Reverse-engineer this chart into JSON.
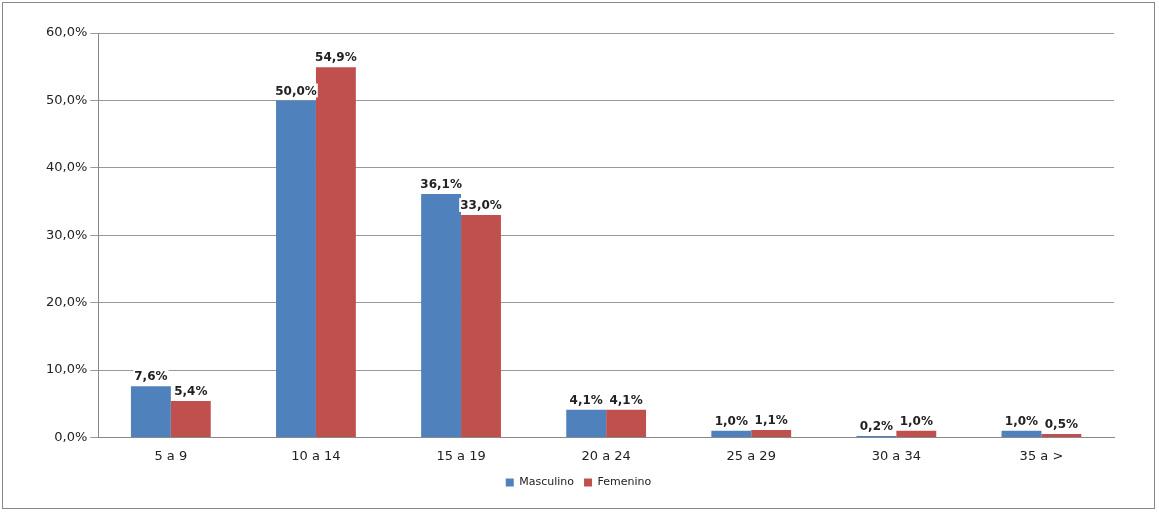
{
  "chart_data": {
    "type": "bar",
    "categories": [
      "5 a 9",
      "10 a 14",
      "15 a 19",
      "20 a 24",
      "25 a 29",
      "30 a 34",
      "35 a >"
    ],
    "series": [
      {
        "name": "Masculino",
        "color": "#4f81bd",
        "values": [
          7.6,
          50.0,
          36.1,
          4.1,
          1.0,
          0.2,
          1.0
        ],
        "value_labels": [
          "7,6%",
          "50,0%",
          "36,1%",
          "4,1%",
          "1,0%",
          "0,2%",
          "1,0%"
        ]
      },
      {
        "name": "Femenino",
        "color": "#c0504d",
        "values": [
          5.4,
          54.9,
          33.0,
          4.1,
          1.1,
          1.0,
          0.5
        ],
        "value_labels": [
          "5,4%",
          "54,9%",
          "33,0%",
          "4,1%",
          "1,1%",
          "1,0%",
          "0,5%"
        ]
      }
    ],
    "ylim": [
      0,
      60
    ],
    "yticks": [
      {
        "value": 0,
        "label": "0,0%"
      },
      {
        "value": 10,
        "label": "10,0%"
      },
      {
        "value": 20,
        "label": "20,0%"
      },
      {
        "value": 30,
        "label": "30,0%"
      },
      {
        "value": 40,
        "label": "40,0%"
      },
      {
        "value": 50,
        "label": "50,0%"
      },
      {
        "value": 60,
        "label": "60,0%"
      }
    ],
    "grid": "y",
    "legend": "bottom"
  }
}
